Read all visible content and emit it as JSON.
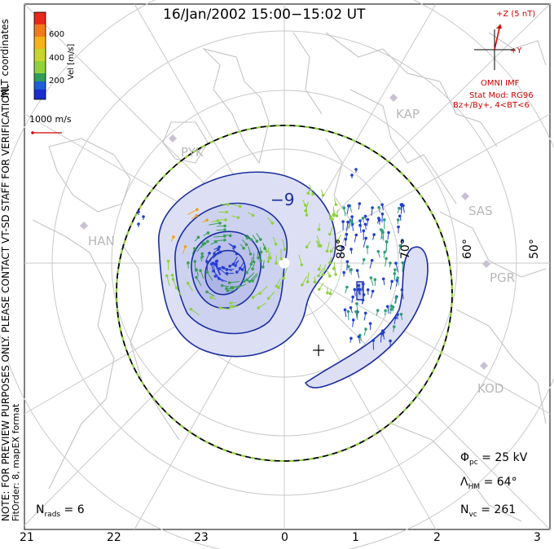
{
  "title": "16/Jan/2002 15:00−15:02 UT",
  "left_notes": {
    "mlt_coords": "MLT coordinates",
    "preview_note": "NOTE: FOR PREVIEW PURPOSES ONLY. PLEASE CONTACT VT-SD STAFF FOR VERIFICATION.",
    "fit_order": "FitOrder: 8,  mapEX format"
  },
  "colorbar": {
    "label": "Vel [m/s]",
    "ticks": [
      "600",
      "400",
      "200"
    ],
    "colors": [
      "#e8281a",
      "#f07a1c",
      "#f5c21b",
      "#8fd23c",
      "#2f9e56",
      "#1f5fd8",
      "#1a2bd0"
    ]
  },
  "scale_vector": {
    "label": "1000 m/s",
    "color": "#d00000"
  },
  "imf": {
    "z_label": "+Z (5 nT)",
    "y_label": "+Y",
    "source": "OMNI IMF",
    "model": "Stat Mod: RG96",
    "condition": "Bz+/By+, 4<BT<6",
    "color": "#d00000"
  },
  "contour_label": "−9",
  "stations": [
    "KAP",
    "SAS",
    "PGR",
    "KOD",
    "PYK",
    "HAN"
  ],
  "latitude_labels": [
    "80°",
    "70°",
    "60°",
    "50°"
  ],
  "stats": {
    "phi_pc": "25 kV",
    "lambda_hm": "64°",
    "n_vc": "261",
    "n_rads": "6"
  },
  "mlt_ticks": [
    "21",
    "22",
    "23",
    "0",
    "1",
    "2",
    "3"
  ],
  "colors": {
    "contour": "#1c2ea0",
    "fill": "#dde0f4",
    "fill_dark": "#b9bfe9",
    "grid": "#c9c9c9",
    "coast": "#c4c4c4"
  }
}
